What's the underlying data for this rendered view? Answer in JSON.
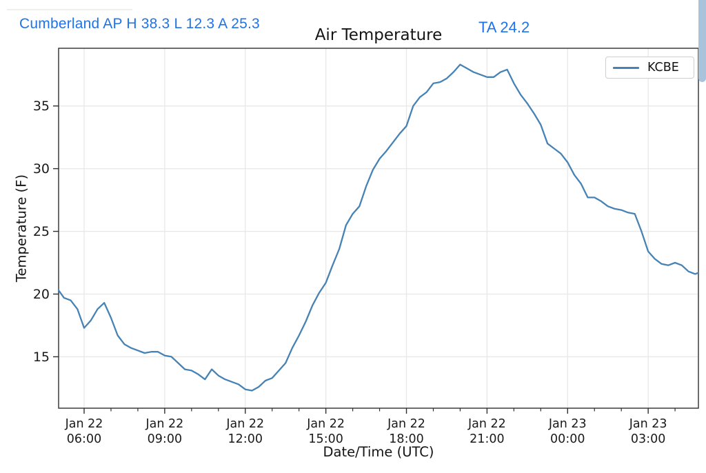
{
  "header": {
    "station_summary": "Cumberland AP H 38.3 L 12.3 A 25.3",
    "ta_reading": "TA 24.2",
    "accent_color": "#1e73e8"
  },
  "scrollbar": {
    "color": "#a9c3da"
  },
  "chart_data": {
    "type": "line",
    "title": "Air Temperature",
    "xlabel": "Date/Time (UTC)",
    "ylabel": "Temperature (F)",
    "grid": true,
    "grid_color": "#e8e8e8",
    "spine_color": "#2e2e2e",
    "tick_label_color": "#1a1a1a",
    "line_color": "#4682b4",
    "legend": {
      "position": "upper right",
      "entries": [
        "KCBE"
      ]
    },
    "ylim": [
      10.9,
      39.6
    ],
    "yticks": [
      15,
      20,
      25,
      30,
      35
    ],
    "xlim_hours": [
      5.05,
      28.87
    ],
    "x_hours_reference": "hours after Jan 22 00:00 UTC",
    "xticks_major": [
      {
        "hour": 6,
        "line1": "Jan 22",
        "line2": "06:00"
      },
      {
        "hour": 9,
        "line1": "Jan 22",
        "line2": "09:00"
      },
      {
        "hour": 12,
        "line1": "Jan 22",
        "line2": "12:00"
      },
      {
        "hour": 15,
        "line1": "Jan 22",
        "line2": "15:00"
      },
      {
        "hour": 18,
        "line1": "Jan 22",
        "line2": "18:00"
      },
      {
        "hour": 21,
        "line1": "Jan 22",
        "line2": "21:00"
      },
      {
        "hour": 24,
        "line1": "Jan 23",
        "line2": "00:00"
      },
      {
        "hour": 27,
        "line1": "Jan 23",
        "line2": "03:00"
      }
    ],
    "xticks_minor_hours": [
      7,
      8,
      10,
      11,
      13,
      14,
      16,
      17,
      19,
      20,
      22,
      23,
      25,
      26,
      28
    ],
    "series": [
      {
        "name": "KCBE",
        "points": [
          [
            5.05,
            20.3
          ],
          [
            5.25,
            19.7
          ],
          [
            5.5,
            19.5
          ],
          [
            5.75,
            18.8
          ],
          [
            6.0,
            17.3
          ],
          [
            6.25,
            17.9
          ],
          [
            6.5,
            18.8
          ],
          [
            6.75,
            19.3
          ],
          [
            7.0,
            18.1
          ],
          [
            7.25,
            16.7
          ],
          [
            7.5,
            16.0
          ],
          [
            7.75,
            15.7
          ],
          [
            8.0,
            15.5
          ],
          [
            8.25,
            15.3
          ],
          [
            8.5,
            15.4
          ],
          [
            8.75,
            15.4
          ],
          [
            9.0,
            15.1
          ],
          [
            9.25,
            15.0
          ],
          [
            9.5,
            14.5
          ],
          [
            9.75,
            14.0
          ],
          [
            10.0,
            13.9
          ],
          [
            10.25,
            13.6
          ],
          [
            10.5,
            13.2
          ],
          [
            10.75,
            14.0
          ],
          [
            11.0,
            13.5
          ],
          [
            11.25,
            13.2
          ],
          [
            11.5,
            13.0
          ],
          [
            11.75,
            12.8
          ],
          [
            12.0,
            12.4
          ],
          [
            12.25,
            12.3
          ],
          [
            12.5,
            12.6
          ],
          [
            12.75,
            13.1
          ],
          [
            13.0,
            13.3
          ],
          [
            13.25,
            13.9
          ],
          [
            13.5,
            14.5
          ],
          [
            13.75,
            15.7
          ],
          [
            14.0,
            16.7
          ],
          [
            14.25,
            17.8
          ],
          [
            14.5,
            19.1
          ],
          [
            14.75,
            20.1
          ],
          [
            15.0,
            20.9
          ],
          [
            15.25,
            22.3
          ],
          [
            15.5,
            23.6
          ],
          [
            15.75,
            25.5
          ],
          [
            16.0,
            26.4
          ],
          [
            16.25,
            27.0
          ],
          [
            16.5,
            28.6
          ],
          [
            16.75,
            29.9
          ],
          [
            17.0,
            30.8
          ],
          [
            17.25,
            31.4
          ],
          [
            17.5,
            32.1
          ],
          [
            17.75,
            32.8
          ],
          [
            18.0,
            33.4
          ],
          [
            18.25,
            35.0
          ],
          [
            18.5,
            35.7
          ],
          [
            18.75,
            36.1
          ],
          [
            19.0,
            36.8
          ],
          [
            19.25,
            36.9
          ],
          [
            19.5,
            37.2
          ],
          [
            19.75,
            37.7
          ],
          [
            20.0,
            38.3
          ],
          [
            20.25,
            38.0
          ],
          [
            20.5,
            37.7
          ],
          [
            20.75,
            37.5
          ],
          [
            21.0,
            37.3
          ],
          [
            21.25,
            37.3
          ],
          [
            21.5,
            37.7
          ],
          [
            21.75,
            37.9
          ],
          [
            22.0,
            36.8
          ],
          [
            22.25,
            35.9
          ],
          [
            22.5,
            35.2
          ],
          [
            22.75,
            34.4
          ],
          [
            23.0,
            33.5
          ],
          [
            23.25,
            32.0
          ],
          [
            23.5,
            31.6
          ],
          [
            23.75,
            31.2
          ],
          [
            24.0,
            30.5
          ],
          [
            24.25,
            29.5
          ],
          [
            24.5,
            28.8
          ],
          [
            24.75,
            27.7
          ],
          [
            25.0,
            27.7
          ],
          [
            25.25,
            27.4
          ],
          [
            25.5,
            27.0
          ],
          [
            25.75,
            26.8
          ],
          [
            26.0,
            26.7
          ],
          [
            26.25,
            26.5
          ],
          [
            26.5,
            26.4
          ],
          [
            26.75,
            25.0
          ],
          [
            27.0,
            23.4
          ],
          [
            27.25,
            22.8
          ],
          [
            27.5,
            22.4
          ],
          [
            27.75,
            22.3
          ],
          [
            28.0,
            22.5
          ],
          [
            28.25,
            22.3
          ],
          [
            28.5,
            21.8
          ],
          [
            28.75,
            21.6
          ],
          [
            28.87,
            21.7
          ]
        ]
      }
    ]
  }
}
